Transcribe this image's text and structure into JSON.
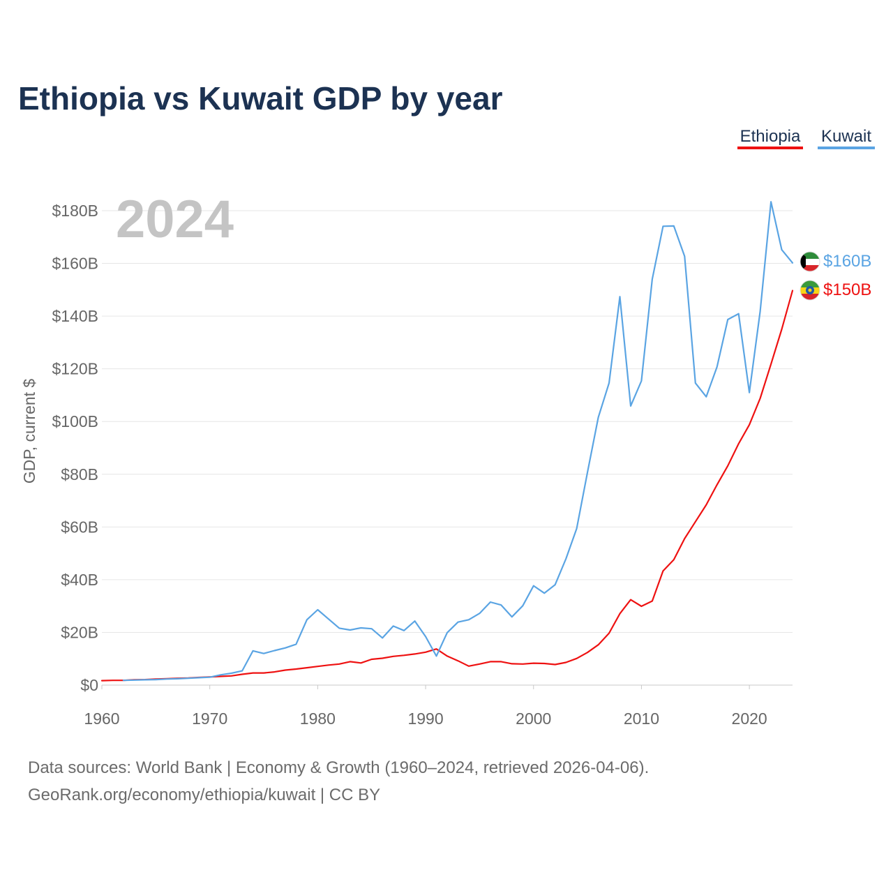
{
  "chart_data": {
    "type": "line",
    "title": "Ethiopia vs Kuwait GDP by year",
    "ylabel": "GDP, current $",
    "xlabel": "",
    "xlim": [
      1960,
      2024
    ],
    "ylim": [
      0,
      180
    ],
    "value_units": "billions of current US$",
    "year_marker": "2024",
    "x_ticks": [
      {
        "value": 1960,
        "label": "1960"
      },
      {
        "value": 1970,
        "label": "1970"
      },
      {
        "value": 1980,
        "label": "1980"
      },
      {
        "value": 1990,
        "label": "1990"
      },
      {
        "value": 2000,
        "label": "2000"
      },
      {
        "value": 2010,
        "label": "2010"
      },
      {
        "value": 2020,
        "label": "2020"
      }
    ],
    "y_ticks": [
      {
        "value": 0,
        "label": "$0"
      },
      {
        "value": 20,
        "label": "$20B"
      },
      {
        "value": 40,
        "label": "$40B"
      },
      {
        "value": 60,
        "label": "$60B"
      },
      {
        "value": 80,
        "label": "$80B"
      },
      {
        "value": 100,
        "label": "$100B"
      },
      {
        "value": 120,
        "label": "$120B"
      },
      {
        "value": 140,
        "label": "$140B"
      },
      {
        "value": 160,
        "label": "$160B"
      },
      {
        "value": 180,
        "label": "$180B"
      }
    ],
    "legend_position": "top-right",
    "series": [
      {
        "name": "Ethiopia",
        "color": "#ee1111",
        "end_label": "$150B",
        "flag_icon": "ethiopia-flag-icon",
        "points": [
          [
            1960,
            1.7
          ],
          [
            1961,
            1.8
          ],
          [
            1962,
            1.8
          ],
          [
            1963,
            2.0
          ],
          [
            1964,
            2.1
          ],
          [
            1965,
            2.3
          ],
          [
            1966,
            2.4
          ],
          [
            1967,
            2.6
          ],
          [
            1968,
            2.7
          ],
          [
            1969,
            2.9
          ],
          [
            1970,
            3.1
          ],
          [
            1971,
            3.3
          ],
          [
            1972,
            3.5
          ],
          [
            1973,
            4.1
          ],
          [
            1974,
            4.6
          ],
          [
            1975,
            4.6
          ],
          [
            1976,
            5.0
          ],
          [
            1977,
            5.7
          ],
          [
            1978,
            6.1
          ],
          [
            1979,
            6.6
          ],
          [
            1980,
            7.1
          ],
          [
            1981,
            7.6
          ],
          [
            1982,
            8.0
          ],
          [
            1983,
            8.9
          ],
          [
            1984,
            8.4
          ],
          [
            1985,
            9.8
          ],
          [
            1986,
            10.2
          ],
          [
            1987,
            10.9
          ],
          [
            1988,
            11.3
          ],
          [
            1989,
            11.8
          ],
          [
            1990,
            12.5
          ],
          [
            1991,
            13.7
          ],
          [
            1992,
            11.0
          ],
          [
            1993,
            9.2
          ],
          [
            1994,
            7.2
          ],
          [
            1995,
            8.0
          ],
          [
            1996,
            8.9
          ],
          [
            1997,
            8.9
          ],
          [
            1998,
            8.1
          ],
          [
            1999,
            8.0
          ],
          [
            2000,
            8.3
          ],
          [
            2001,
            8.2
          ],
          [
            2002,
            7.8
          ],
          [
            2003,
            8.6
          ],
          [
            2004,
            10.1
          ],
          [
            2005,
            12.4
          ],
          [
            2006,
            15.3
          ],
          [
            2007,
            19.7
          ],
          [
            2008,
            27.1
          ],
          [
            2009,
            32.4
          ],
          [
            2010,
            29.9
          ],
          [
            2011,
            31.9
          ],
          [
            2012,
            43.3
          ],
          [
            2013,
            47.6
          ],
          [
            2014,
            55.6
          ],
          [
            2015,
            62.0
          ],
          [
            2016,
            68.4
          ],
          [
            2017,
            76.0
          ],
          [
            2018,
            83.2
          ],
          [
            2019,
            91.6
          ],
          [
            2020,
            98.8
          ],
          [
            2021,
            108.8
          ],
          [
            2022,
            121.8
          ],
          [
            2023,
            135.0
          ],
          [
            2024,
            149.7
          ]
        ]
      },
      {
        "name": "Kuwait",
        "color": "#5aa4e3",
        "end_label": "$160B",
        "flag_icon": "kuwait-flag-icon",
        "points": [
          [
            1962,
            1.8
          ],
          [
            1963,
            1.9
          ],
          [
            1964,
            2.0
          ],
          [
            1965,
            2.1
          ],
          [
            1966,
            2.3
          ],
          [
            1967,
            2.4
          ],
          [
            1968,
            2.6
          ],
          [
            1969,
            2.8
          ],
          [
            1970,
            3.0
          ],
          [
            1971,
            3.9
          ],
          [
            1972,
            4.5
          ],
          [
            1973,
            5.4
          ],
          [
            1974,
            13.0
          ],
          [
            1975,
            12.0
          ],
          [
            1976,
            13.1
          ],
          [
            1977,
            14.1
          ],
          [
            1978,
            15.5
          ],
          [
            1979,
            24.8
          ],
          [
            1980,
            28.6
          ],
          [
            1981,
            25.1
          ],
          [
            1982,
            21.6
          ],
          [
            1983,
            20.9
          ],
          [
            1984,
            21.7
          ],
          [
            1985,
            21.4
          ],
          [
            1986,
            17.9
          ],
          [
            1987,
            22.4
          ],
          [
            1988,
            20.7
          ],
          [
            1989,
            24.3
          ],
          [
            1990,
            18.4
          ],
          [
            1991,
            11.0
          ],
          [
            1992,
            19.9
          ],
          [
            1993,
            23.9
          ],
          [
            1994,
            24.8
          ],
          [
            1995,
            27.2
          ],
          [
            1996,
            31.5
          ],
          [
            1997,
            30.4
          ],
          [
            1998,
            25.9
          ],
          [
            1999,
            30.1
          ],
          [
            2000,
            37.7
          ],
          [
            2001,
            34.9
          ],
          [
            2002,
            38.1
          ],
          [
            2003,
            47.9
          ],
          [
            2004,
            59.4
          ],
          [
            2005,
            80.8
          ],
          [
            2006,
            101.6
          ],
          [
            2007,
            114.6
          ],
          [
            2008,
            147.4
          ],
          [
            2009,
            105.9
          ],
          [
            2010,
            115.4
          ],
          [
            2011,
            154.0
          ],
          [
            2012,
            174.1
          ],
          [
            2013,
            174.2
          ],
          [
            2014,
            162.7
          ],
          [
            2015,
            114.6
          ],
          [
            2016,
            109.4
          ],
          [
            2017,
            120.7
          ],
          [
            2018,
            138.7
          ],
          [
            2019,
            140.9
          ],
          [
            2020,
            111.0
          ],
          [
            2021,
            141.8
          ],
          [
            2022,
            183.4
          ],
          [
            2023,
            165.2
          ],
          [
            2024,
            160.2
          ]
        ]
      }
    ]
  },
  "footer": {
    "source_line": "Data sources: World Bank | Economy & Growth (1960–2024, retrieved 2026-04-06).",
    "credit_line": "GeoRank.org/economy/ethiopia/kuwait | CC BY"
  }
}
